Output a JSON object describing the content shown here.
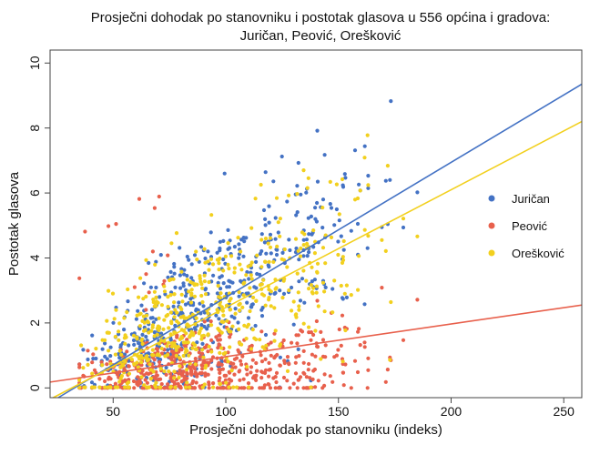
{
  "chart_data": {
    "type": "scatter",
    "title_lines": [
      "Prosječni dohodak po stanovniku i postotak glasova u 556 općina i gradova:",
      "Juričan, Peović, Orešković"
    ],
    "xlabel": "Prosječni dohodak po stanovniku (indeks)",
    "ylabel": "Postotak glasova",
    "xlim": [
      22,
      258
    ],
    "ylim": [
      -0.3,
      10.4
    ],
    "x_ticks": [
      50,
      100,
      150,
      200,
      250
    ],
    "y_ticks": [
      0,
      2,
      4,
      6,
      8,
      10
    ],
    "grid": false,
    "legend_position": "right",
    "series": [
      {
        "name": "Juričan",
        "color": "#4472C4",
        "n_points": 556,
        "trend_line": {
          "x": [
            22,
            258
          ],
          "y": [
            -0.45,
            9.35
          ]
        }
      },
      {
        "name": "Peović",
        "color": "#E8604C",
        "n_points": 556,
        "trend_line": {
          "x": [
            22,
            258
          ],
          "y": [
            0.18,
            2.55
          ]
        }
      },
      {
        "name": "Orešković",
        "color": "#F2D01E",
        "n_points": 556,
        "trend_line": {
          "x": [
            22,
            258
          ],
          "y": [
            -0.35,
            8.2
          ]
        }
      }
    ]
  }
}
